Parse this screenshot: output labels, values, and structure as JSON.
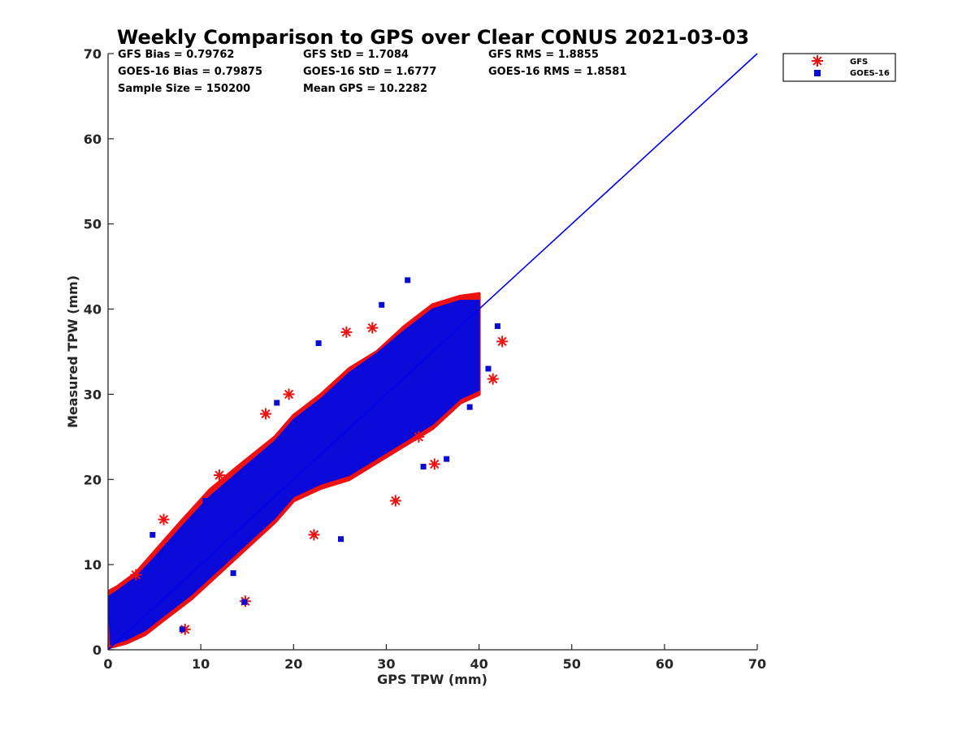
{
  "chart_data": {
    "type": "scatter",
    "title": "Weekly Comparison to GPS over Clear CONUS 2021-03-03",
    "xlabel": "GPS TPW (mm)",
    "ylabel": "Measured TPW (mm)",
    "xlim": [
      0,
      70
    ],
    "ylim": [
      0,
      70
    ],
    "xticks": [
      "0",
      "10",
      "20",
      "30",
      "40",
      "50",
      "60",
      "70"
    ],
    "yticks": [
      "0",
      "10",
      "20",
      "30",
      "40",
      "50",
      "60",
      "70"
    ],
    "grid": false,
    "legend_position": "outside-top-right",
    "stats": [
      [
        "GFS Bias = 0.79762",
        "GFS StD = 1.7084",
        "GFS RMS = 1.8855"
      ],
      [
        "GOES-16 Bias = 0.79875",
        "GOES-16 StD = 1.6777",
        "GOES-16 RMS = 1.8581"
      ],
      [
        "Sample Size = 150200",
        "Mean GPS = 10.2282",
        ""
      ]
    ],
    "reference_line": {
      "x": [
        0,
        70
      ],
      "y": [
        0,
        70
      ],
      "color": "#0000ee"
    },
    "series": [
      {
        "name": "GFS",
        "marker": "asterisk",
        "color": "#ee1111",
        "envelope": {
          "x": [
            0,
            1,
            3,
            5,
            8,
            11,
            14,
            18,
            20,
            23,
            26,
            29,
            32,
            35,
            38,
            40,
            40,
            38,
            35,
            32,
            29,
            26,
            23,
            20,
            18,
            15,
            12,
            9,
            6,
            4,
            2,
            0.2
          ],
          "y": [
            6.8,
            7.4,
            9.0,
            11.5,
            15.2,
            18.8,
            21.5,
            25.0,
            27.5,
            30.0,
            33.0,
            35.0,
            38.0,
            40.5,
            41.5,
            41.8,
            30.0,
            29.0,
            26.0,
            24.0,
            22.0,
            20.0,
            19.0,
            17.5,
            15.0,
            12.0,
            9.0,
            6.0,
            3.5,
            1.8,
            0.8,
            0.3
          ]
        },
        "outliers": {
          "x": [
            25.7,
            14.8,
            8.3,
            42.5,
            41.5,
            35.2,
            22.2,
            28.5,
            31.0,
            19.5,
            6.0,
            3.0,
            12.0,
            33.5,
            17.0
          ],
          "y": [
            37.3,
            5.7,
            2.4,
            36.2,
            31.8,
            21.8,
            13.5,
            37.8,
            17.5,
            30.0,
            15.3,
            8.8,
            20.5,
            25.0,
            27.7
          ]
        }
      },
      {
        "name": "GOES-16",
        "marker": "square",
        "color": "#0a0ad8",
        "envelope": {
          "x": [
            0,
            1,
            3,
            5,
            8,
            11,
            14,
            18,
            20,
            23,
            26,
            29,
            32,
            35,
            38,
            40,
            40,
            38,
            35,
            32,
            29,
            26,
            23,
            20,
            18,
            15,
            12,
            9,
            6,
            4,
            2,
            0.3
          ],
          "y": [
            6.2,
            6.9,
            8.5,
            10.8,
            14.5,
            18.0,
            20.8,
            24.5,
            27.0,
            29.5,
            32.5,
            34.8,
            37.5,
            40.0,
            41.0,
            41.0,
            30.5,
            29.5,
            26.5,
            24.5,
            22.5,
            20.5,
            19.5,
            18.0,
            15.5,
            12.5,
            9.5,
            6.5,
            4.0,
            2.3,
            1.2,
            0.6
          ]
        },
        "outliers": {
          "x": [
            32.3,
            25.1,
            14.7,
            8.0,
            42.0,
            39.0,
            41.0,
            36.5,
            13.5,
            4.8,
            18.2,
            29.5,
            22.7,
            10.5,
            34.0,
            38.5
          ],
          "y": [
            43.4,
            13.0,
            5.6,
            2.4,
            38.0,
            28.5,
            33.0,
            22.4,
            9.0,
            13.5,
            29.0,
            40.5,
            36.0,
            17.5,
            21.5,
            40.0
          ]
        }
      }
    ]
  }
}
